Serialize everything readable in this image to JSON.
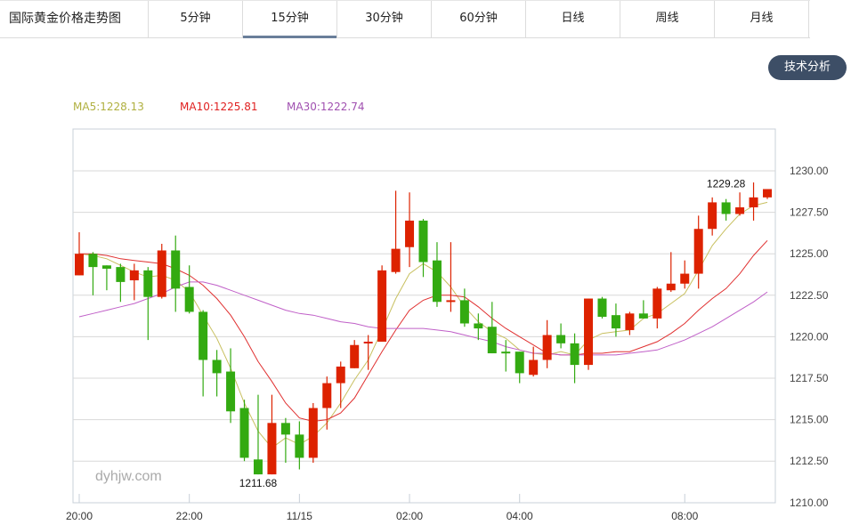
{
  "header": {
    "title": "国际黄金价格走势图",
    "tabs": [
      {
        "label": "5分钟",
        "active": false
      },
      {
        "label": "15分钟",
        "active": true
      },
      {
        "label": "30分钟",
        "active": false
      },
      {
        "label": "60分钟",
        "active": false
      },
      {
        "label": "日线",
        "active": false
      },
      {
        "label": "周线",
        "active": false
      },
      {
        "label": "月线",
        "active": false
      }
    ]
  },
  "tech_button": "技术分析",
  "legend": {
    "ma5": "MA5:1228.13",
    "ma10": "MA10:1225.81",
    "ma30": "MA30:1222.74"
  },
  "colors": {
    "up": "#dd2200",
    "down": "#33aa11",
    "ma5": "#c8c060",
    "ma10": "#e03030",
    "ma30": "#c060c8",
    "grid": "#d8d8d8",
    "accent": "#3d4e66"
  },
  "watermark": "dyhjw.com",
  "chart_data": {
    "type": "candlestick",
    "title": "国际黄金价格走势图 (15分钟)",
    "xlabel": "",
    "ylabel": "",
    "ylim": [
      1210,
      1230
    ],
    "y_ticks": [
      "1230.00",
      "1227.50",
      "1225.00",
      "1222.50",
      "1220.00",
      "1217.50",
      "1215.00",
      "1212.50",
      "1210.00"
    ],
    "x_ticks": [
      {
        "label": "20:00",
        "index": 0
      },
      {
        "label": "22:00",
        "index": 8
      },
      {
        "label": "11/15",
        "index": 16
      },
      {
        "label": "02:00",
        "index": 24
      },
      {
        "label": "04:00",
        "index": 32
      },
      {
        "label": "08:00",
        "index": 44
      }
    ],
    "annotations": [
      {
        "text": "1229.28",
        "index": 47,
        "type": "max"
      },
      {
        "text": "1211.68",
        "index": 13,
        "type": "min"
      }
    ],
    "legend": [
      "MA5:1228.13",
      "MA10:1225.81",
      "MA30:1222.74"
    ],
    "candles": [
      [
        1223.7,
        1225.0,
        1226.3,
        1223.7
      ],
      [
        1225.0,
        1224.2,
        1225.1,
        1222.5
      ],
      [
        1224.3,
        1224.1,
        1224.3,
        1222.8
      ],
      [
        1224.2,
        1223.3,
        1224.4,
        1222.1
      ],
      [
        1223.4,
        1224.0,
        1224.4,
        1222.2
      ],
      [
        1224.0,
        1222.4,
        1224.2,
        1219.8
      ],
      [
        1222.4,
        1225.2,
        1225.6,
        1222.3
      ],
      [
        1225.2,
        1222.9,
        1226.1,
        1221.5
      ],
      [
        1223.0,
        1221.5,
        1224.3,
        1221.4
      ],
      [
        1221.5,
        1218.6,
        1221.6,
        1216.4
      ],
      [
        1218.6,
        1217.8,
        1219.2,
        1216.4
      ],
      [
        1217.9,
        1215.5,
        1219.3,
        1214.8
      ],
      [
        1215.7,
        1212.7,
        1216.2,
        1212.5
      ],
      [
        1212.6,
        1211.7,
        1216.5,
        1211.7
      ],
      [
        1211.7,
        1214.8,
        1216.5,
        1211.7
      ],
      [
        1214.8,
        1214.1,
        1215.1,
        1212.4
      ],
      [
        1214.1,
        1212.7,
        1214.9,
        1212.0
      ],
      [
        1212.7,
        1215.7,
        1216.0,
        1212.4
      ],
      [
        1215.7,
        1217.2,
        1217.6,
        1214.4
      ],
      [
        1217.2,
        1218.2,
        1218.5,
        1215.7
      ],
      [
        1218.1,
        1219.5,
        1219.8,
        1218.1
      ],
      [
        1219.6,
        1219.7,
        1220.1,
        1218.0
      ],
      [
        1219.7,
        1224.0,
        1224.3,
        1219.7
      ],
      [
        1223.9,
        1225.3,
        1228.8,
        1223.8
      ],
      [
        1225.4,
        1227.0,
        1228.7,
        1224.2
      ],
      [
        1227.0,
        1224.5,
        1227.1,
        1223.6
      ],
      [
        1224.6,
        1222.1,
        1225.7,
        1221.8
      ],
      [
        1222.1,
        1222.2,
        1225.7,
        1221.5
      ],
      [
        1222.2,
        1220.8,
        1222.9,
        1220.6
      ],
      [
        1220.8,
        1220.5,
        1221.4,
        1219.8
      ],
      [
        1220.6,
        1219.0,
        1222.1,
        1219.0
      ],
      [
        1219.1,
        1219.0,
        1219.8,
        1217.9
      ],
      [
        1219.1,
        1217.8,
        1219.1,
        1217.2
      ],
      [
        1217.7,
        1218.6,
        1219.4,
        1217.6
      ],
      [
        1218.6,
        1220.1,
        1221.0,
        1218.1
      ],
      [
        1220.1,
        1219.6,
        1220.8,
        1219.3
      ],
      [
        1219.6,
        1218.3,
        1220.2,
        1217.2
      ],
      [
        1218.3,
        1222.3,
        1222.3,
        1218.0
      ],
      [
        1222.3,
        1221.2,
        1222.4,
        1221.1
      ],
      [
        1221.3,
        1220.5,
        1222.0,
        1220.0
      ],
      [
        1220.4,
        1221.4,
        1221.5,
        1220.1
      ],
      [
        1221.4,
        1221.1,
        1222.2,
        1221.1
      ],
      [
        1221.1,
        1222.9,
        1223.0,
        1220.5
      ],
      [
        1222.8,
        1223.2,
        1225.1,
        1222.7
      ],
      [
        1223.2,
        1223.8,
        1224.6,
        1222.9
      ],
      [
        1223.8,
        1226.5,
        1227.3,
        1222.9
      ],
      [
        1226.5,
        1228.1,
        1228.4,
        1226.1
      ],
      [
        1228.1,
        1227.4,
        1228.3,
        1227.0
      ],
      [
        1227.4,
        1227.8,
        1228.7,
        1227.3
      ],
      [
        1227.8,
        1228.4,
        1229.3,
        1227.0
      ],
      [
        1228.4,
        1228.9,
        1228.9,
        1228.3
      ]
    ],
    "candle_fields": [
      "open",
      "close",
      "high",
      "low"
    ],
    "series": [
      {
        "name": "MA5",
        "values": [
          1225.0,
          1224.9,
          1224.7,
          1224.3,
          1223.9,
          1223.6,
          1223.7,
          1223.4,
          1222.7,
          1221.3,
          1219.9,
          1218.1,
          1216.0,
          1214.3,
          1213.3,
          1213.9,
          1213.5,
          1214.0,
          1214.8,
          1216.0,
          1217.4,
          1218.6,
          1220.4,
          1222.3,
          1223.8,
          1224.4,
          1223.9,
          1223.0,
          1221.8,
          1220.9,
          1220.3,
          1219.9,
          1219.2,
          1219.0,
          1218.9,
          1219.1,
          1218.9,
          1219.8,
          1220.2,
          1220.3,
          1220.4,
          1221.1,
          1221.4,
          1222.0,
          1222.6,
          1224.0,
          1225.5,
          1226.5,
          1227.4,
          1227.9,
          1228.1
        ]
      },
      {
        "name": "MA10",
        "values": [
          1225.0,
          1225.0,
          1224.9,
          1224.7,
          1224.6,
          1224.5,
          1224.4,
          1224.1,
          1223.7,
          1223.1,
          1222.3,
          1221.3,
          1220.0,
          1218.5,
          1217.3,
          1216.0,
          1215.1,
          1214.9,
          1215.0,
          1215.4,
          1216.3,
          1217.7,
          1219.1,
          1220.4,
          1221.6,
          1222.2,
          1222.5,
          1222.5,
          1222.4,
          1221.8,
          1221.1,
          1220.5,
          1220.0,
          1219.5,
          1219.0,
          1218.9,
          1218.9,
          1219.0,
          1219.0,
          1219.1,
          1219.1,
          1219.4,
          1219.7,
          1220.2,
          1220.8,
          1221.6,
          1222.3,
          1222.9,
          1223.8,
          1224.9,
          1225.8
        ]
      },
      {
        "name": "MA30",
        "values": [
          1221.2,
          1221.4,
          1221.6,
          1221.8,
          1222.0,
          1222.3,
          1222.6,
          1223.0,
          1223.3,
          1223.3,
          1223.1,
          1222.8,
          1222.5,
          1222.2,
          1221.9,
          1221.6,
          1221.4,
          1221.3,
          1221.1,
          1220.9,
          1220.8,
          1220.6,
          1220.5,
          1220.5,
          1220.5,
          1220.5,
          1220.4,
          1220.3,
          1220.1,
          1219.9,
          1219.7,
          1219.4,
          1219.2,
          1219.0,
          1219.0,
          1218.9,
          1218.9,
          1218.9,
          1218.9,
          1218.9,
          1219.0,
          1219.1,
          1219.2,
          1219.5,
          1219.8,
          1220.2,
          1220.6,
          1221.1,
          1221.6,
          1222.1,
          1222.7
        ]
      }
    ]
  }
}
